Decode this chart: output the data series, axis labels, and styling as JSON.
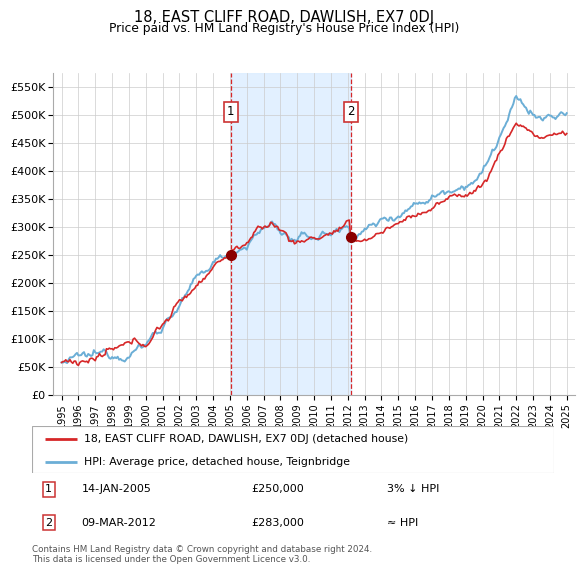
{
  "title": "18, EAST CLIFF ROAD, DAWLISH, EX7 0DJ",
  "subtitle": "Price paid vs. HM Land Registry's House Price Index (HPI)",
  "legend_line1": "18, EAST CLIFF ROAD, DAWLISH, EX7 0DJ (detached house)",
  "legend_line2": "HPI: Average price, detached house, Teignbridge",
  "annotation1_date": "14-JAN-2005",
  "annotation1_price": "£250,000",
  "annotation1_hpi": "3% ↓ HPI",
  "annotation2_date": "09-MAR-2012",
  "annotation2_price": "£283,000",
  "annotation2_hpi": "≈ HPI",
  "footer": "Contains HM Land Registry data © Crown copyright and database right 2024.\nThis data is licensed under the Open Government Licence v3.0.",
  "sale1_x": 2005.04,
  "sale1_y": 250000,
  "sale2_x": 2012.19,
  "sale2_y": 283000,
  "hpi_color": "#6baed6",
  "price_color": "#d62728",
  "sale_dot_color": "#8b0000",
  "vline_color": "#d62728",
  "shade_color": "#ddeeff",
  "ylim_min": 0,
  "ylim_max": 575000,
  "xlim_min": 1994.5,
  "xlim_max": 2025.5,
  "yticks": [
    0,
    50000,
    100000,
    150000,
    200000,
    250000,
    300000,
    350000,
    400000,
    450000,
    500000,
    550000
  ],
  "ytick_labels": [
    "£0",
    "£50K",
    "£100K",
    "£150K",
    "£200K",
    "£250K",
    "£300K",
    "£350K",
    "£400K",
    "£450K",
    "£500K",
    "£550K"
  ]
}
